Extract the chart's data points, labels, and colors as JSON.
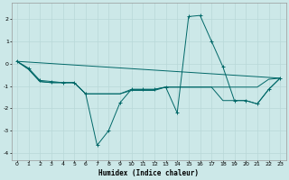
{
  "xlabel": "Humidex (Indice chaleur)",
  "bg_color": "#cce8e8",
  "grid_color": "#b8d8d8",
  "line_color": "#006868",
  "xlim": [
    -0.5,
    23.5
  ],
  "ylim": [
    -4.3,
    2.7
  ],
  "xticks": [
    0,
    1,
    2,
    3,
    4,
    5,
    6,
    7,
    8,
    9,
    10,
    11,
    12,
    13,
    14,
    15,
    16,
    17,
    18,
    19,
    20,
    21,
    22,
    23
  ],
  "yticks": [
    -4,
    -3,
    -2,
    -1,
    0,
    1,
    2
  ],
  "line1_x": [
    0,
    1,
    2,
    3,
    4,
    5,
    6,
    7,
    8,
    9,
    10,
    11,
    12,
    13,
    14,
    15,
    16,
    17,
    18,
    19,
    20,
    21,
    22,
    23
  ],
  "line1_y": [
    0.1,
    -0.2,
    -0.75,
    -0.8,
    -0.85,
    -0.85,
    -1.35,
    -3.65,
    -3.0,
    -1.75,
    -1.15,
    -1.15,
    -1.15,
    -1.05,
    -2.2,
    2.1,
    2.15,
    1.0,
    -0.15,
    -1.65,
    -1.65,
    -1.8,
    -1.15,
    -0.65
  ],
  "line2_x": [
    0,
    1,
    2,
    3,
    4,
    5,
    6,
    7,
    8,
    9,
    10,
    11,
    12,
    13,
    14,
    15,
    16,
    17,
    18,
    19,
    20,
    21,
    22,
    23
  ],
  "line2_y": [
    0.1,
    -0.25,
    -0.8,
    -0.85,
    -0.85,
    -0.85,
    -1.35,
    -1.35,
    -1.35,
    -1.35,
    -1.2,
    -1.2,
    -1.2,
    -1.05,
    -1.05,
    -1.05,
    -1.05,
    -1.05,
    -1.05,
    -1.05,
    -1.05,
    -1.05,
    -0.7,
    -0.65
  ],
  "line3_x": [
    0,
    1,
    2,
    3,
    4,
    5,
    6,
    7,
    8,
    9,
    10,
    11,
    12,
    13,
    14,
    15,
    16,
    17,
    18,
    19,
    20,
    21,
    22,
    23
  ],
  "line3_y": [
    0.1,
    -0.25,
    -0.8,
    -0.85,
    -0.85,
    -0.85,
    -1.35,
    -1.35,
    -1.35,
    -1.35,
    -1.15,
    -1.15,
    -1.15,
    -1.05,
    -1.05,
    -1.05,
    -1.05,
    -1.05,
    -1.65,
    -1.65,
    -1.65,
    -1.8,
    -1.15,
    -0.65
  ],
  "line4_x": [
    0,
    23
  ],
  "line4_y": [
    0.1,
    -0.65
  ]
}
